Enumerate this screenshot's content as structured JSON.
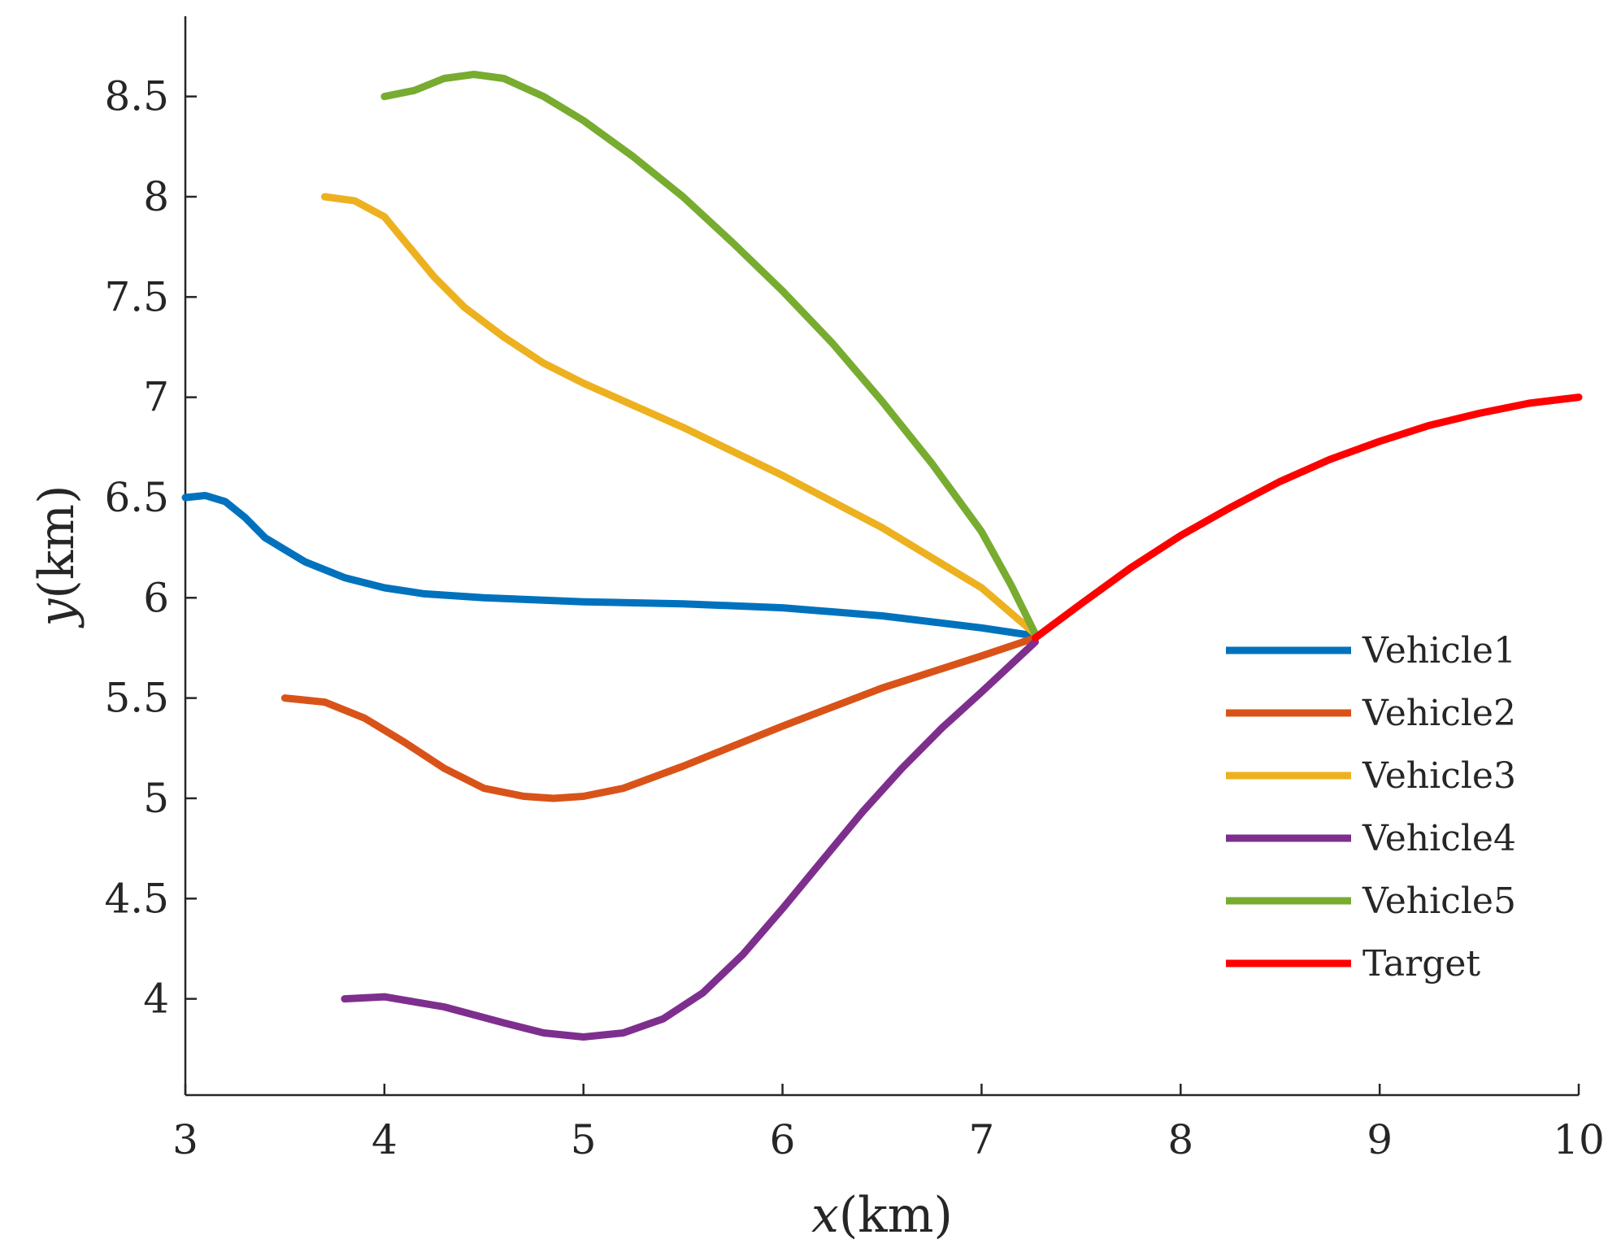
{
  "chart_data": {
    "type": "line",
    "title": "",
    "xlabel_var": "x",
    "xlabel_unit": "(km)",
    "ylabel_var": "y",
    "ylabel_unit": "(km)",
    "xlim": [
      3,
      10
    ],
    "ylim": [
      3.52,
      8.9
    ],
    "xticks": [
      3,
      4,
      5,
      6,
      7,
      8,
      9,
      10
    ],
    "yticks": [
      4,
      4.5,
      5,
      5.5,
      6,
      6.5,
      7,
      7.5,
      8,
      8.5
    ],
    "legend_position": "right",
    "grid": false,
    "series": [
      {
        "name": "Vehicle1",
        "color": "#0072BD",
        "points": [
          [
            3.0,
            6.5
          ],
          [
            3.1,
            6.51
          ],
          [
            3.2,
            6.48
          ],
          [
            3.3,
            6.4
          ],
          [
            3.4,
            6.3
          ],
          [
            3.5,
            6.24
          ],
          [
            3.6,
            6.18
          ],
          [
            3.8,
            6.1
          ],
          [
            4.0,
            6.05
          ],
          [
            4.2,
            6.02
          ],
          [
            4.5,
            6.0
          ],
          [
            5.0,
            5.98
          ],
          [
            5.5,
            5.97
          ],
          [
            6.0,
            5.95
          ],
          [
            6.5,
            5.91
          ],
          [
            7.0,
            5.85
          ],
          [
            7.27,
            5.81
          ]
        ]
      },
      {
        "name": "Vehicle2",
        "color": "#D95319",
        "points": [
          [
            3.5,
            5.5
          ],
          [
            3.7,
            5.48
          ],
          [
            3.9,
            5.4
          ],
          [
            4.1,
            5.28
          ],
          [
            4.3,
            5.15
          ],
          [
            4.5,
            5.05
          ],
          [
            4.7,
            5.01
          ],
          [
            4.85,
            5.0
          ],
          [
            5.0,
            5.01
          ],
          [
            5.2,
            5.05
          ],
          [
            5.5,
            5.16
          ],
          [
            6.0,
            5.36
          ],
          [
            6.5,
            5.55
          ],
          [
            7.0,
            5.71
          ],
          [
            7.27,
            5.8
          ]
        ]
      },
      {
        "name": "Vehicle3",
        "color": "#EDB120",
        "points": [
          [
            3.7,
            8.0
          ],
          [
            3.85,
            7.98
          ],
          [
            4.0,
            7.9
          ],
          [
            4.1,
            7.78
          ],
          [
            4.25,
            7.6
          ],
          [
            4.4,
            7.45
          ],
          [
            4.6,
            7.3
          ],
          [
            4.8,
            7.17
          ],
          [
            5.0,
            7.07
          ],
          [
            5.5,
            6.85
          ],
          [
            6.0,
            6.61
          ],
          [
            6.5,
            6.35
          ],
          [
            7.0,
            6.05
          ],
          [
            7.27,
            5.82
          ]
        ]
      },
      {
        "name": "Vehicle4",
        "color": "#7E2F8E",
        "points": [
          [
            3.8,
            4.0
          ],
          [
            4.0,
            4.01
          ],
          [
            4.3,
            3.96
          ],
          [
            4.6,
            3.88
          ],
          [
            4.8,
            3.83
          ],
          [
            5.0,
            3.81
          ],
          [
            5.2,
            3.83
          ],
          [
            5.4,
            3.9
          ],
          [
            5.6,
            4.03
          ],
          [
            5.8,
            4.22
          ],
          [
            6.0,
            4.45
          ],
          [
            6.2,
            4.69
          ],
          [
            6.4,
            4.93
          ],
          [
            6.6,
            5.15
          ],
          [
            6.8,
            5.35
          ],
          [
            7.0,
            5.53
          ],
          [
            7.27,
            5.78
          ]
        ]
      },
      {
        "name": "Vehicle5",
        "color": "#77AC30",
        "points": [
          [
            4.0,
            8.5
          ],
          [
            4.15,
            8.53
          ],
          [
            4.3,
            8.59
          ],
          [
            4.45,
            8.61
          ],
          [
            4.6,
            8.59
          ],
          [
            4.8,
            8.5
          ],
          [
            5.0,
            8.38
          ],
          [
            5.25,
            8.2
          ],
          [
            5.5,
            8.0
          ],
          [
            5.75,
            7.77
          ],
          [
            6.0,
            7.53
          ],
          [
            6.25,
            7.27
          ],
          [
            6.5,
            6.98
          ],
          [
            6.75,
            6.67
          ],
          [
            7.0,
            6.33
          ],
          [
            7.15,
            6.06
          ],
          [
            7.27,
            5.82
          ]
        ]
      },
      {
        "name": "Target",
        "color": "#FF0000",
        "points": [
          [
            7.27,
            5.8
          ],
          [
            7.5,
            5.97
          ],
          [
            7.75,
            6.15
          ],
          [
            8.0,
            6.31
          ],
          [
            8.25,
            6.45
          ],
          [
            8.5,
            6.58
          ],
          [
            8.75,
            6.69
          ],
          [
            9.0,
            6.78
          ],
          [
            9.25,
            6.86
          ],
          [
            9.5,
            6.92
          ],
          [
            9.75,
            6.97
          ],
          [
            10.0,
            7.0
          ]
        ]
      }
    ]
  }
}
